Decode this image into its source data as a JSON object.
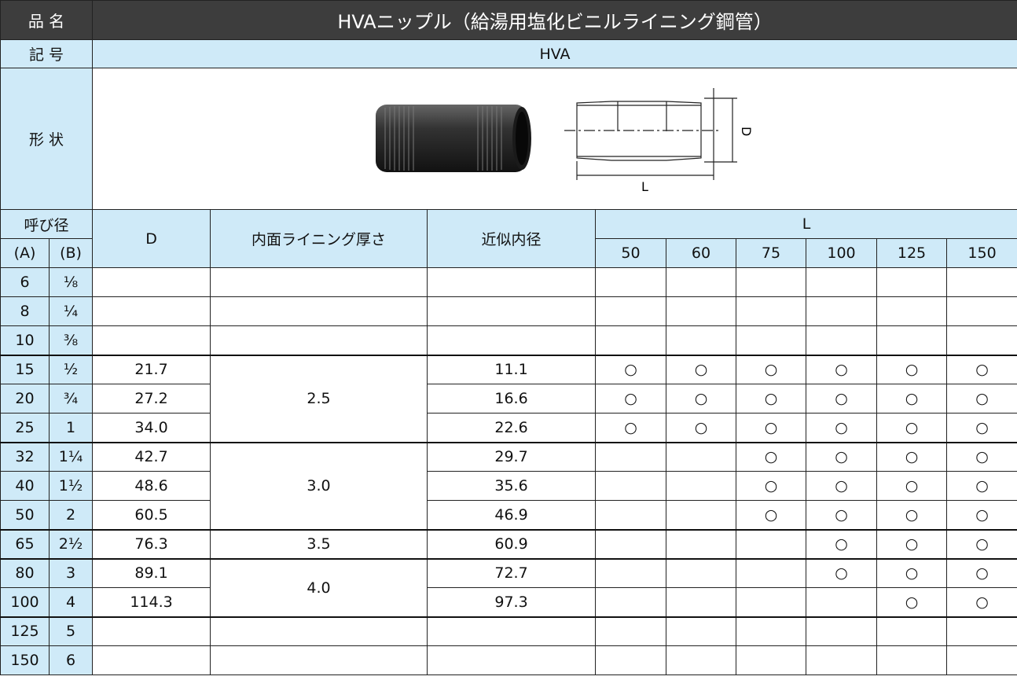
{
  "header": {
    "name_label": "品 名",
    "title": "HVAニップル（給湯用塩化ビニルライニング鋼管）",
    "code_label": "記 号",
    "code": "HVA",
    "shape_label": "形 状"
  },
  "shape": {
    "dim_d": "D",
    "dim_l": "L"
  },
  "table": {
    "headers": {
      "nominal": "呼び径",
      "a": "(A)",
      "b": "(B)",
      "d": "D",
      "lining": "内面ライニング厚さ",
      "inner": "近似内径",
      "l": "L",
      "l_sizes": [
        "50",
        "60",
        "75",
        "100",
        "125",
        "150"
      ]
    },
    "rows": [
      {
        "a": "6",
        "b": "⅛",
        "d": null,
        "lining": null,
        "inner": null,
        "l": [
          null,
          null,
          null,
          null,
          null,
          null
        ]
      },
      {
        "a": "8",
        "b": "¼",
        "d": null,
        "lining": null,
        "inner": null,
        "l": [
          null,
          null,
          null,
          null,
          null,
          null
        ]
      },
      {
        "a": "10",
        "b": "⅜",
        "d": null,
        "lining": null,
        "inner": null,
        "l": [
          null,
          null,
          null,
          null,
          null,
          null
        ]
      },
      {
        "a": "15",
        "b": "½",
        "d": "21.7",
        "lining": "2.5",
        "inner": "11.1",
        "l": [
          "○",
          "○",
          "○",
          "○",
          "○",
          "○"
        ]
      },
      {
        "a": "20",
        "b": "¾",
        "d": "27.2",
        "lining": null,
        "inner": "16.6",
        "l": [
          "○",
          "○",
          "○",
          "○",
          "○",
          "○"
        ]
      },
      {
        "a": "25",
        "b": "1",
        "d": "34.0",
        "lining": null,
        "inner": "22.6",
        "l": [
          "○",
          "○",
          "○",
          "○",
          "○",
          "○"
        ]
      },
      {
        "a": "32",
        "b": "1¼",
        "d": "42.7",
        "lining": "3.0",
        "inner": "29.7",
        "l": [
          null,
          null,
          "○",
          "○",
          "○",
          "○"
        ]
      },
      {
        "a": "40",
        "b": "1½",
        "d": "48.6",
        "lining": null,
        "inner": "35.6",
        "l": [
          null,
          null,
          "○",
          "○",
          "○",
          "○"
        ]
      },
      {
        "a": "50",
        "b": "2",
        "d": "60.5",
        "lining": null,
        "inner": "46.9",
        "l": [
          null,
          null,
          "○",
          "○",
          "○",
          "○"
        ]
      },
      {
        "a": "65",
        "b": "2½",
        "d": "76.3",
        "lining": "3.5",
        "inner": "60.9",
        "l": [
          null,
          null,
          null,
          "○",
          "○",
          "○"
        ]
      },
      {
        "a": "80",
        "b": "3",
        "d": "89.1",
        "lining": "4.0",
        "inner": "72.7",
        "l": [
          null,
          null,
          null,
          "○",
          "○",
          "○"
        ]
      },
      {
        "a": "100",
        "b": "4",
        "d": "114.3",
        "lining": null,
        "inner": "97.3",
        "l": [
          null,
          null,
          null,
          null,
          "○",
          "○"
        ]
      },
      {
        "a": "125",
        "b": "5",
        "d": null,
        "lining": null,
        "inner": null,
        "l": [
          null,
          null,
          null,
          null,
          null,
          null
        ]
      },
      {
        "a": "150",
        "b": "6",
        "d": null,
        "lining": null,
        "inner": null,
        "l": [
          null,
          null,
          null,
          null,
          null,
          null
        ]
      }
    ]
  }
}
